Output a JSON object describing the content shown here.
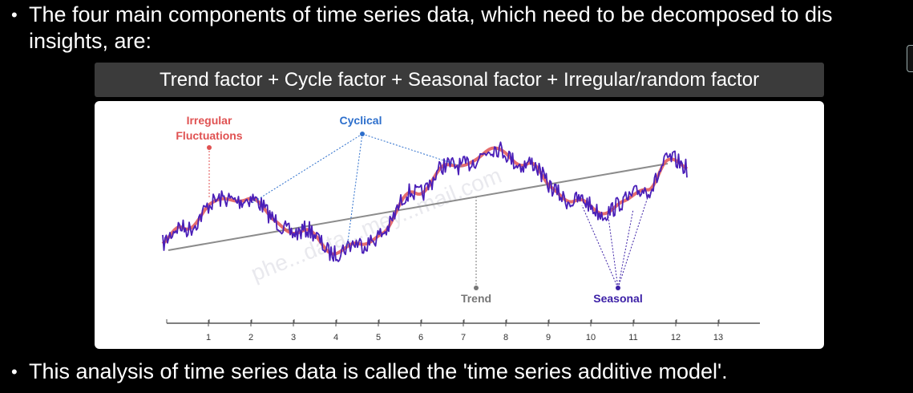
{
  "slide": {
    "bullet_1": "The four main components of time series data, which need to be decomposed to dis insights, are:",
    "formula": "Trend factor + Cycle factor + Seasonal factor + Irregular/random factor",
    "bullet_2": "This analysis of time series data is called the 'time series additive model'.",
    "bullet_char": "•"
  },
  "diagram": {
    "labels": {
      "irregular_line1": "Irregular",
      "irregular_line2": "Fluctuations",
      "cyclical": "Cyclical",
      "trend": "Trend",
      "seasonal": "Seasonal"
    },
    "watermark": "phe...data...mey...mail.com",
    "axis_ticks": [
      "1",
      "2",
      "3",
      "4",
      "5",
      "6",
      "7",
      "8",
      "9",
      "10",
      "11",
      "12",
      "13"
    ],
    "colors": {
      "irregular": "#e05252",
      "cyclical": "#2d6fcc",
      "trend": "#777777",
      "seasonal": "#3b1fa6",
      "series_noisy": "#4a1fb8",
      "series_smooth": "#e05555",
      "trend_line": "#8c8c8c"
    }
  }
}
